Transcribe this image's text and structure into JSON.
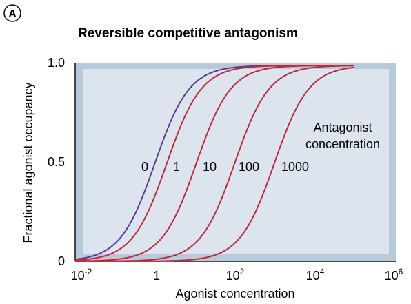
{
  "panel_letter": "A",
  "chart_data": {
    "type": "line",
    "title": "Reversible competitive antagonism",
    "xlabel": "Agonist concentration",
    "ylabel": "Fractional agonist occupancy",
    "x_scale": "log",
    "xlim": [
      0.01,
      1000000
    ],
    "ylim": [
      0,
      1.0
    ],
    "x_ticks": [
      {
        "base": "10",
        "exp": "-2"
      },
      {
        "base": "1",
        "exp": ""
      },
      {
        "base": "10",
        "exp": "2"
      },
      {
        "base": "10",
        "exp": "4"
      },
      {
        "base": "10",
        "exp": "6"
      }
    ],
    "y_ticks": [
      "0",
      "0.5",
      "1.0"
    ],
    "annotation": [
      "Antagonist",
      "concentration"
    ],
    "series": [
      {
        "name": "0",
        "color": "#5a3d8f",
        "ec50": 1,
        "x_range": [
          0.01,
          30000
        ]
      },
      {
        "name": "1",
        "color": "#c0293b",
        "ec50": 2,
        "x_range": [
          0.01,
          100000
        ]
      },
      {
        "name": "10",
        "color": "#c0293b",
        "ec50": 11,
        "x_range": [
          0.01,
          100000
        ]
      },
      {
        "name": "100",
        "color": "#c0293b",
        "ec50": 101,
        "x_range": [
          0.01,
          100000
        ]
      },
      {
        "name": "1000",
        "color": "#c0293b",
        "ec50": 1001,
        "x_range": [
          0.01,
          100000
        ]
      }
    ],
    "colors": {
      "plot_bg": "#dce4ee",
      "plot_border": "#b9c9dc"
    }
  }
}
